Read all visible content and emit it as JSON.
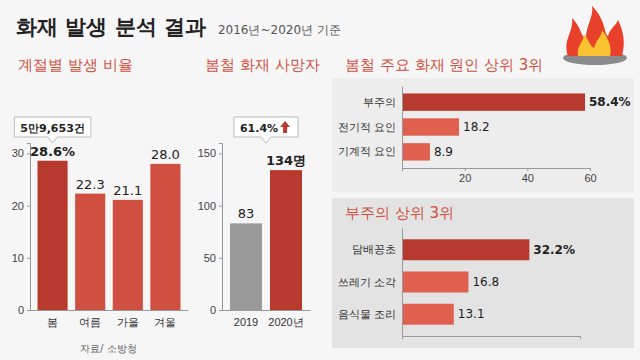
{
  "title": "화재 발생 분석 결과",
  "subtitle": "2016년~2020년 기준",
  "source": "자료/ 소방청",
  "chart_data": [
    {
      "type": "bar",
      "title": "계절별 발생 비율",
      "categories": [
        "봄",
        "여름",
        "가을",
        "겨울"
      ],
      "values": [
        28.6,
        22.3,
        21.1,
        28.0
      ],
      "value_labels": [
        "28.6%",
        "22.3",
        "21.1",
        "28.0"
      ],
      "colors": [
        "#b83a2f",
        "#cf4f40",
        "#cf4f40",
        "#cf4f40"
      ],
      "ylim": [
        0,
        32
      ],
      "yticks": [
        0,
        10,
        20,
        30
      ],
      "data_labels": true,
      "annotation": "5만9,653건"
    },
    {
      "type": "bar",
      "title": "봄철 화재 사망자",
      "categories": [
        "2019",
        "2020년"
      ],
      "values": [
        83,
        134
      ],
      "value_labels": [
        "83",
        "134명"
      ],
      "colors": [
        "#9a9a9a",
        "#b83a2f"
      ],
      "ylim": [
        0,
        160
      ],
      "yticks": [
        0,
        50,
        100,
        150
      ],
      "data_labels": true,
      "annotation": "61.4%"
    },
    {
      "type": "bar",
      "title": "봄철 주요 화재 원인 상위 3위",
      "orientation": "horizontal",
      "categories": [
        "부주의",
        "전기적 요인",
        "기계적 요인"
      ],
      "values": [
        58.4,
        18.2,
        8.9
      ],
      "value_labels": [
        "58.4%",
        "18.2",
        "8.9"
      ],
      "colors": [
        "#b83a2f",
        "#e0604f",
        "#e0604f"
      ],
      "xlim": [
        0,
        60
      ],
      "xticks": [
        20,
        40,
        60
      ],
      "data_labels": true
    },
    {
      "type": "bar",
      "title": "부주의 상위 3위",
      "orientation": "horizontal",
      "categories": [
        "담배꽁초",
        "쓰레기 소각",
        "음식물 조리"
      ],
      "values": [
        32.2,
        16.8,
        13.1
      ],
      "value_labels": [
        "32.2%",
        "16.8",
        "13.1"
      ],
      "colors": [
        "#b83a2f",
        "#e0604f",
        "#e0604f"
      ],
      "xlim": [
        0,
        45
      ],
      "tick_labels": "y",
      "data_labels": true
    }
  ]
}
